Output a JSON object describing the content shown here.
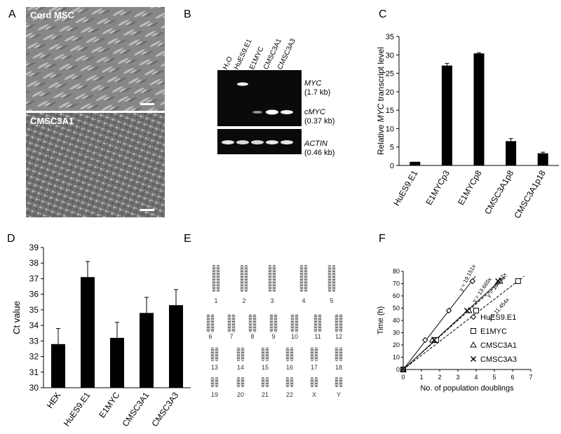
{
  "panels": {
    "a": {
      "letter": "A",
      "top_label": "Cord MSC",
      "bottom_label": "CMSC3A1"
    },
    "b": {
      "letter": "B",
      "lanes": [
        "H₂O",
        "HuES9.E1",
        "E1MYC",
        "CMSC3A1",
        "CMSC3A3"
      ],
      "myc_name": "MYC",
      "myc_size": "(1.7 kb)",
      "cmyc_name": "cMYC",
      "cmyc_size": "(0.37 kb)",
      "actin_name": "ACTIN",
      "actin_size": "(0.46 kb)"
    },
    "c": {
      "letter": "C",
      "ylabel_pre": "Relative ",
      "ylabel_ital": "MYC",
      "ylabel_post": " transcript level"
    },
    "d": {
      "letter": "D",
      "ylabel": "Ct value"
    },
    "e": {
      "letter": "E",
      "chromosomes": [
        "1",
        "2",
        "3",
        "4",
        "5",
        "6",
        "7",
        "8",
        "9",
        "10",
        "11",
        "12",
        "13",
        "14",
        "15",
        "16",
        "17",
        "18",
        "19",
        "20",
        "21",
        "22",
        "X",
        "Y"
      ]
    },
    "f": {
      "letter": "F",
      "xlabel": "No. of population doublings",
      "ylabel": "Time (h)",
      "legend": [
        "HuES9.E1",
        "E1MYC",
        "CMSC3A1",
        "CMSC3A3"
      ],
      "equations": [
        "y = 19.151x",
        "y = 13.665x",
        "y = 13.387x",
        "y = 11.454x"
      ]
    }
  },
  "chart_data": [
    {
      "type": "bar",
      "panel": "C",
      "categories": [
        "HuES9.E1",
        "E1MYCp3",
        "E1MYCp8",
        "CMSC3A1p8",
        "CMSC3A1p18"
      ],
      "values": [
        1.0,
        27.1,
        30.4,
        6.6,
        3.3
      ],
      "errors": [
        0,
        0.6,
        0.2,
        0.7,
        0.3
      ],
      "ylim": [
        0,
        35
      ],
      "yticks": [
        0,
        5,
        10,
        15,
        20,
        25,
        30,
        35
      ]
    },
    {
      "type": "bar",
      "panel": "D",
      "categories": [
        "HEK",
        "HuES9.E1",
        "E1MYC",
        "CMSC3A1",
        "CMSC3A3"
      ],
      "values": [
        32.8,
        37.1,
        33.2,
        34.8,
        35.3
      ],
      "errors": [
        1.0,
        1.0,
        1.0,
        1.0,
        1.0
      ],
      "ylim": [
        30,
        39
      ],
      "yticks": [
        30,
        31,
        32,
        33,
        34,
        35,
        36,
        37,
        38,
        39
      ]
    },
    {
      "type": "scatter",
      "panel": "F",
      "xlim": [
        0,
        7
      ],
      "ylim": [
        0,
        80
      ],
      "xticks": [
        0,
        1,
        2,
        3,
        4,
        5,
        6,
        7
      ],
      "yticks": [
        0,
        10,
        20,
        30,
        40,
        50,
        60,
        70,
        80
      ],
      "series": [
        {
          "name": "HuES9.E1",
          "marker": "diamond",
          "x": [
            0,
            1.2,
            2.5,
            3.8
          ],
          "y": [
            0,
            24,
            48,
            72
          ],
          "slope": 19.151,
          "line": "solid"
        },
        {
          "name": "E1MYC",
          "marker": "square",
          "x": [
            0,
            1.8,
            4.0,
            6.3
          ],
          "y": [
            0,
            24,
            48,
            72
          ],
          "slope": 11.454,
          "line": "dashed"
        },
        {
          "name": "CMSC3A1",
          "marker": "triangle",
          "x": [
            0,
            1.6,
            3.6,
            5.3
          ],
          "y": [
            0,
            24,
            48,
            72
          ],
          "slope": 13.387,
          "line": "dashed"
        },
        {
          "name": "CMSC3A3",
          "marker": "cross",
          "x": [
            0,
            1.7,
            3.5,
            5.2
          ],
          "y": [
            0,
            24,
            48,
            72
          ],
          "slope": 13.665,
          "line": "solid"
        }
      ]
    }
  ]
}
